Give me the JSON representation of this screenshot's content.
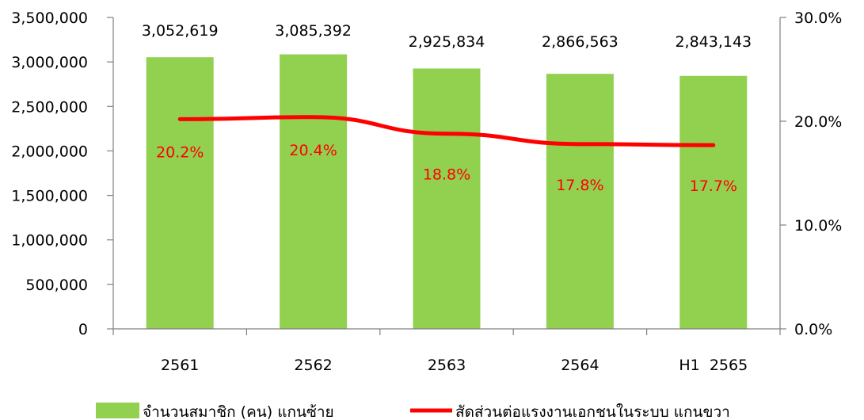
{
  "chart_data": {
    "type": "bar",
    "categories": [
      "2561",
      "2562",
      "2563",
      "2564",
      "H1  2565"
    ],
    "series": [
      {
        "name": "จำนวนสมาชิก (คน) แกนซ้าย",
        "type": "bar",
        "axis": "left",
        "values": [
          3052619,
          3085392,
          2925834,
          2866563,
          2843143
        ],
        "labels": [
          "3,052,619",
          "3,085,392",
          "2,925,834",
          "2,866,563",
          "2,843,143"
        ]
      },
      {
        "name": "สัดส่วนต่อแรงงานเอกชนในระบบ แกนขวา",
        "type": "line",
        "axis": "right",
        "values": [
          20.2,
          20.4,
          18.8,
          17.8,
          17.7
        ],
        "labels": [
          "20.2%",
          "20.4%",
          "18.8%",
          "17.8%",
          "17.7%"
        ]
      }
    ],
    "y_left": {
      "ylim": [
        0,
        3500000
      ],
      "ticks": [
        0,
        500000,
        1000000,
        1500000,
        2000000,
        2500000,
        3000000,
        3500000
      ],
      "tick_labels": [
        "0",
        "500,000",
        "1,000,000",
        "1,500,000",
        "2,000,000",
        "2,500,000",
        "3,000,000",
        "3,500,000"
      ]
    },
    "y_right": {
      "ylim": [
        0,
        30
      ],
      "ticks": [
        0,
        10,
        20,
        30
      ],
      "tick_labels": [
        "0.0%",
        "10.0%",
        "20.0%",
        "30.0%"
      ]
    },
    "grid": false,
    "legend_position": "bottom",
    "colors": {
      "bar": "#92D050",
      "line": "#FF0000",
      "axis": "#808080",
      "text": "#000000",
      "line_label": "#FF0000"
    }
  }
}
